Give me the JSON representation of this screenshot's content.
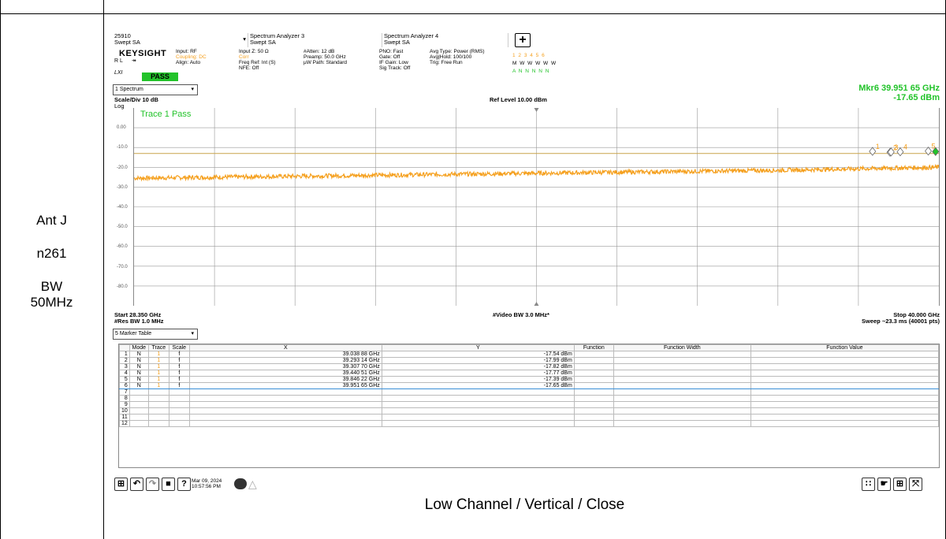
{
  "left_labels": [
    "Ant J",
    "n261",
    "BW\n50MHz"
  ],
  "caption": "Low Channel / Vertical / Close",
  "tabs": [
    {
      "line1": "25910",
      "line2": "Swept SA"
    },
    {
      "line1": "Spectrum Analyzer 3",
      "line2": "Swept SA"
    },
    {
      "line1": "Spectrum Analyzer 4",
      "line2": "Swept SA"
    }
  ],
  "logo": "KEYSIGHT",
  "rl": [
    "R L",
    "LXI"
  ],
  "pass_badge": "PASS",
  "info_blocks": [
    {
      "lines": [
        "Input: RF",
        "Coupling: DC",
        "Align: Auto"
      ],
      "highlight": 1
    },
    {
      "lines": [
        "Input Z: 50 Ω",
        "Corr",
        "Freq Ref: Int (S)",
        "NFE: Off"
      ],
      "highlight": 1
    },
    {
      "lines": [
        "#Atten: 12 dB",
        "Preamp: 50.0 GHz",
        "µW Path: Standard"
      ],
      "highlight": -1
    },
    {
      "lines": [
        "PNO: Fast",
        "Gate: Off",
        "IF Gain: Low",
        "Sig Track: Off"
      ],
      "highlight": -1
    },
    {
      "lines": [
        "Avg Type: Power (RMS)",
        "Avg|Hold: 100/100",
        "Trig: Free Run"
      ],
      "highlight": -1
    }
  ],
  "trace_nums": [
    "1 2 3 4 5 6",
    "M W W W W W",
    "A N N N N N"
  ],
  "spectrum_dropdown": "1 Spectrum",
  "scale_div": "Scale/Div 10 dB",
  "log": "Log",
  "ref_level": "Ref Level 10.00 dBm",
  "marker_readout": {
    "line1": "Mkr6  39.951 65 GHz",
    "line2": "-17.65 dBm"
  },
  "trace_pass": "Trace 1 Pass",
  "y_ticks": [
    "0.00",
    "-10.0",
    "-20.0",
    "-30.0",
    "-40.0",
    "-50.0",
    "-60.0",
    "-70.0",
    "-80.0"
  ],
  "start_freq": "Start 28.350 GHz",
  "res_bw": "#Res BW 1.0 MHz",
  "video_bw": "#Video BW 3.0 MHz*",
  "stop_freq": "Stop 40.000 GHz",
  "sweep": "Sweep ~23.3 ms (40001 pts)",
  "marker_dropdown": "5 Marker Table",
  "table": {
    "headers": [
      "",
      "Mode",
      "Trace",
      "Scale",
      "X",
      "Y",
      "Function",
      "Function Width",
      "Function Value"
    ],
    "rows": [
      [
        "1",
        "N",
        "1",
        "f",
        "39.038 88 GHz",
        "-17.54 dBm"
      ],
      [
        "2",
        "N",
        "1",
        "f",
        "39.293 14 GHz",
        "-17.99 dBm"
      ],
      [
        "3",
        "N",
        "1",
        "f",
        "39.307 70 GHz",
        "-17.82 dBm"
      ],
      [
        "4",
        "N",
        "1",
        "f",
        "39.440 51 GHz",
        "-17.77 dBm"
      ],
      [
        "5",
        "N",
        "1",
        "f",
        "39.846 22 GHz",
        "-17.39 dBm"
      ],
      [
        "6",
        "N",
        "1",
        "f",
        "39.951 65 GHz",
        "-17.65 dBm"
      ],
      [
        "7"
      ],
      [
        "8"
      ],
      [
        "9"
      ],
      [
        "10"
      ],
      [
        "11"
      ],
      [
        "12"
      ]
    ],
    "selected_row": 6
  },
  "date": [
    "Mar 09, 2024",
    "10:57:56 PM"
  ],
  "colors": {
    "trace": "#f5a01e",
    "pass": "#22c32a",
    "limit": "#c9a44a"
  },
  "chart_data": {
    "type": "line",
    "x_range_ghz": [
      28.35,
      40.0
    ],
    "ylim": [
      -90,
      10
    ],
    "series": [
      {
        "x": [
          28.35,
          30.68,
          33.01,
          35.34,
          37.67,
          40.0
        ],
        "values": [
          -25.5,
          -24.5,
          -23.5,
          -22.5,
          -21.5,
          -20.0
        ]
      }
    ],
    "limit_line": -13.0,
    "markers": [
      {
        "label": "1",
        "x": 39.03888,
        "y": -17.54
      },
      {
        "label": "2",
        "x": 39.29314,
        "y": -17.99
      },
      {
        "label": "3",
        "x": 39.3077,
        "y": -17.82
      },
      {
        "label": "4",
        "x": 39.44051,
        "y": -17.77
      },
      {
        "label": "5",
        "x": 39.84622,
        "y": -17.39
      },
      {
        "label": "6",
        "x": 39.95165,
        "y": -17.65
      }
    ]
  }
}
